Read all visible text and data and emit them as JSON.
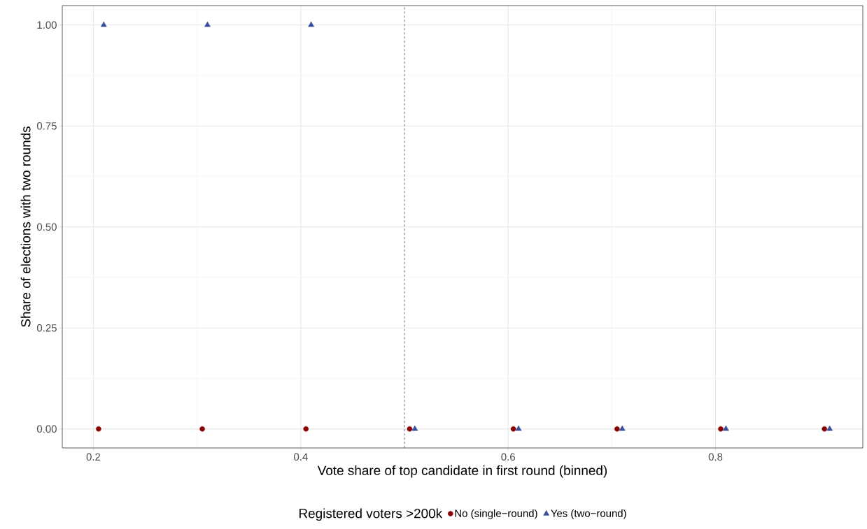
{
  "chart_data": {
    "type": "scatter",
    "xlabel": "Vote share of top candidate in first round (binned)",
    "ylabel": "Share of elections with two rounds",
    "legend_title": "Registered voters >200k",
    "series": [
      {
        "name": "No (single−round)",
        "color": "#8b0000",
        "marker": "circle",
        "x": [
          0.205,
          0.305,
          0.405,
          0.505,
          0.605,
          0.705,
          0.805,
          0.905
        ],
        "values": [
          0,
          0,
          0,
          0,
          0,
          0,
          0,
          0
        ]
      },
      {
        "name": "Yes (two−round)",
        "color": "#3a4fa0",
        "marker": "triangle",
        "x": [
          0.21,
          0.31,
          0.41,
          0.51,
          0.61,
          0.71,
          0.81,
          0.91
        ],
        "values": [
          1,
          1,
          1,
          0,
          0,
          0,
          0,
          0
        ]
      }
    ],
    "xlim": [
      0.17,
      0.942
    ],
    "ylim": [
      -0.047,
      1.048
    ],
    "xticks": [
      0.2,
      0.4,
      0.6,
      0.8
    ],
    "yticks": [
      {
        "value": 0,
        "label": "0.00"
      },
      {
        "value": 0.25,
        "label": "0.25"
      },
      {
        "value": 0.5,
        "label": "0.50"
      },
      {
        "value": 0.75,
        "label": "0.75"
      },
      {
        "value": 1,
        "label": "1.00"
      }
    ],
    "ref_lines": [
      {
        "axis": "x",
        "value": 0.5,
        "line_style": "dashed",
        "color": "#555555"
      }
    ],
    "grid": true,
    "legend": "bottom"
  }
}
